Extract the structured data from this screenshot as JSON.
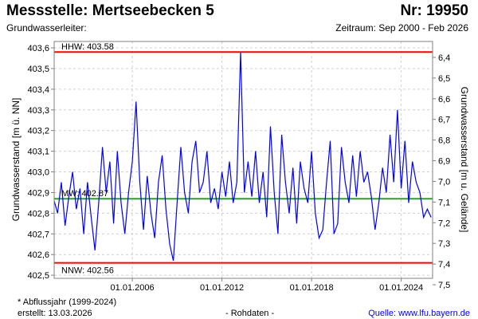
{
  "header": {
    "title": "Messstelle: Mertseebecken 5",
    "number": "Nr: 19950",
    "aquifer": "Grundwasserleiter:",
    "period": "Zeitraum: Sep 2000 - Feb 2026"
  },
  "footer": {
    "note": "* Abflussjahr (1999-2024)",
    "created": "erstellt:  13.03.2026",
    "datatype": "- Rohdaten -",
    "source": "Quelle: www.lfu.bayern.de"
  },
  "colors": {
    "series": "#0000ff",
    "extreme": "#ff0000",
    "mean": "#339933",
    "grid": "#d0d0d0",
    "source": "#0000ff"
  },
  "chart_data": {
    "type": "line",
    "ylabel": "Grundwasserstand [m ü. NN]",
    "ylabel_right": "Grundwasserstand [m u. Gelände]",
    "xlim": [
      2000.77,
      2026.1
    ],
    "ylim": [
      402.485,
      403.631
    ],
    "right_axis_offset": 409.954,
    "yticks": [
      "402,5",
      "402,6",
      "402,7",
      "402,8",
      "402,9",
      "403,0",
      "403,1",
      "403,2",
      "403,3",
      "403,4",
      "403,5",
      "403,6"
    ],
    "yticks_values": [
      402.5,
      402.6,
      402.7,
      402.8,
      402.9,
      403.0,
      403.1,
      403.2,
      403.3,
      403.4,
      403.5,
      403.6
    ],
    "yticks_right": [
      "6,4",
      "6,5",
      "6,6",
      "6,7",
      "6,8",
      "6,9",
      "7,0",
      "7,1",
      "7,2",
      "7,3",
      "7,4",
      "7,5"
    ],
    "yticks_right_values": [
      6.4,
      6.5,
      6.6,
      6.7,
      6.8,
      6.9,
      7.0,
      7.1,
      7.2,
      7.3,
      7.4,
      7.5
    ],
    "xticks": [
      "01.01.2006",
      "01.01.2012",
      "01.01.2018",
      "01.01.2024"
    ],
    "xticks_values": [
      2006.0,
      2012.0,
      2018.0,
      2024.0
    ],
    "reference_lines": [
      {
        "label": "HHW: 403.58",
        "value": 403.58,
        "kind": "extreme"
      },
      {
        "label": "MW: 402.87",
        "value": 402.87,
        "kind": "mean"
      },
      {
        "label": "NNW: 402.56",
        "value": 402.56,
        "kind": "extreme"
      }
    ],
    "series": [
      {
        "name": "Grundwasserstand",
        "x_start": 2000.75,
        "x_step": 0.25,
        "values": [
          402.86,
          402.8,
          402.95,
          402.74,
          402.88,
          403.0,
          402.82,
          402.92,
          402.7,
          402.95,
          402.78,
          402.62,
          402.85,
          403.12,
          402.9,
          403.05,
          402.75,
          403.1,
          402.85,
          402.7,
          402.9,
          403.05,
          403.34,
          402.95,
          402.72,
          402.98,
          402.8,
          402.68,
          402.95,
          403.08,
          402.82,
          402.65,
          402.57,
          402.85,
          403.12,
          402.9,
          402.8,
          403.05,
          403.15,
          402.9,
          402.95,
          403.1,
          402.85,
          402.92,
          402.82,
          403.0,
          402.88,
          403.05,
          402.85,
          402.95,
          403.58,
          402.9,
          403.05,
          402.88,
          403.1,
          402.85,
          403.0,
          402.78,
          403.22,
          402.9,
          402.7,
          403.18,
          402.95,
          402.8,
          403.02,
          402.75,
          403.05,
          402.92,
          402.85,
          403.1,
          402.8,
          402.68,
          402.72,
          402.95,
          403.15,
          402.7,
          402.75,
          403.12,
          402.95,
          402.85,
          403.08,
          402.88,
          403.1,
          402.95,
          403.0,
          402.88,
          402.72,
          402.85,
          403.02,
          402.9,
          403.18,
          402.95,
          403.3,
          402.92,
          403.15,
          402.85,
          403.05,
          402.95,
          402.9,
          402.78,
          402.82,
          402.78
        ]
      }
    ]
  }
}
